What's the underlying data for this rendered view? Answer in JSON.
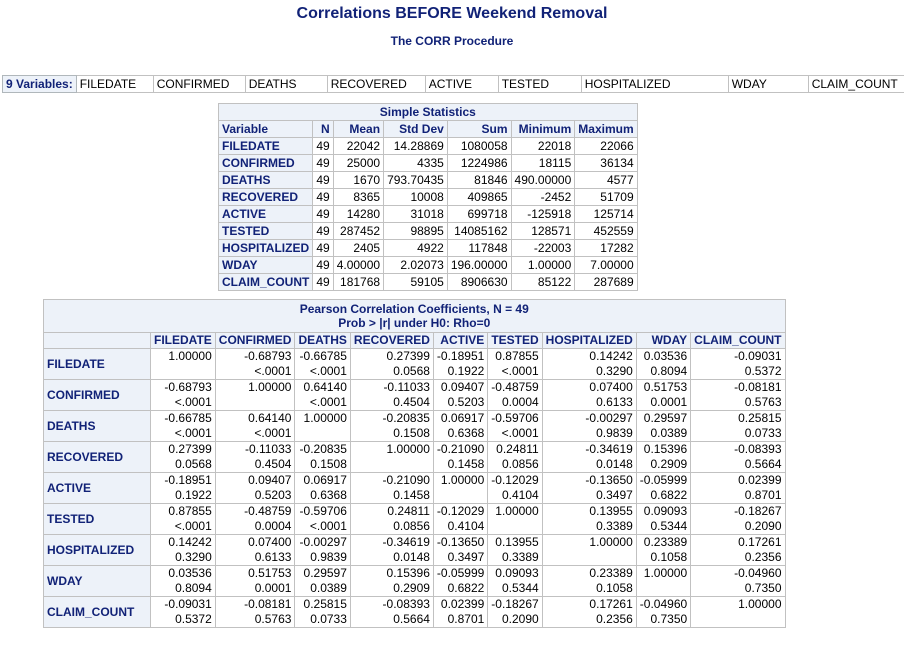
{
  "title": "Correlations BEFORE Weekend Removal",
  "subtitle": "The CORR Procedure",
  "variables": {
    "label": "9  Variables:",
    "names": [
      "FILEDATE",
      "CONFIRMED",
      "DEATHS",
      "RECOVERED",
      "ACTIVE",
      "TESTED",
      "HOSPITALIZED",
      "WDAY",
      "CLAIM_COUNT"
    ]
  },
  "simple_stats": {
    "caption": "Simple Statistics",
    "headers": [
      "Variable",
      "N",
      "Mean",
      "Std Dev",
      "Sum",
      "Minimum",
      "Maximum"
    ],
    "rows": [
      [
        "FILEDATE",
        "49",
        "22042",
        "14.28869",
        "1080058",
        "22018",
        "22066"
      ],
      [
        "CONFIRMED",
        "49",
        "25000",
        "4335",
        "1224986",
        "18115",
        "36134"
      ],
      [
        "DEATHS",
        "49",
        "1670",
        "793.70435",
        "81846",
        "490.00000",
        "4577"
      ],
      [
        "RECOVERED",
        "49",
        "8365",
        "10008",
        "409865",
        "-2452",
        "51709"
      ],
      [
        "ACTIVE",
        "49",
        "14280",
        "31018",
        "699718",
        "-125918",
        "125714"
      ],
      [
        "TESTED",
        "49",
        "287452",
        "98895",
        "14085162",
        "128571",
        "452559"
      ],
      [
        "HOSPITALIZED",
        "49",
        "2405",
        "4922",
        "117848",
        "-22003",
        "17282"
      ],
      [
        "WDAY",
        "49",
        "4.00000",
        "2.02073",
        "196.00000",
        "1.00000",
        "7.00000"
      ],
      [
        "CLAIM_COUNT",
        "49",
        "181768",
        "59105",
        "8906630",
        "85122",
        "287689"
      ]
    ]
  },
  "pearson": {
    "caption_line1": "Pearson Correlation Coefficients, N = 49",
    "caption_line2": "Prob > |r| under H0: Rho=0",
    "columns": [
      "FILEDATE",
      "CONFIRMED",
      "DEATHS",
      "RECOVERED",
      "ACTIVE",
      "TESTED",
      "HOSPITALIZED",
      "WDAY",
      "CLAIM_COUNT"
    ],
    "rows": [
      {
        "name": "FILEDATE",
        "r": [
          "1.00000",
          "-0.68793",
          "-0.66785",
          "0.27399",
          "-0.18951",
          "0.87855",
          "0.14242",
          "0.03536",
          "-0.09031"
        ],
        "p": [
          "",
          "<.0001",
          "<.0001",
          "0.0568",
          "0.1922",
          "<.0001",
          "0.3290",
          "0.8094",
          "0.5372"
        ]
      },
      {
        "name": "CONFIRMED",
        "r": [
          "-0.68793",
          "1.00000",
          "0.64140",
          "-0.11033",
          "0.09407",
          "-0.48759",
          "0.07400",
          "0.51753",
          "-0.08181"
        ],
        "p": [
          "<.0001",
          "",
          "<.0001",
          "0.4504",
          "0.5203",
          "0.0004",
          "0.6133",
          "0.0001",
          "0.5763"
        ]
      },
      {
        "name": "DEATHS",
        "r": [
          "-0.66785",
          "0.64140",
          "1.00000",
          "-0.20835",
          "0.06917",
          "-0.59706",
          "-0.00297",
          "0.29597",
          "0.25815"
        ],
        "p": [
          "<.0001",
          "<.0001",
          "",
          "0.1508",
          "0.6368",
          "<.0001",
          "0.9839",
          "0.0389",
          "0.0733"
        ]
      },
      {
        "name": "RECOVERED",
        "r": [
          "0.27399",
          "-0.11033",
          "-0.20835",
          "1.00000",
          "-0.21090",
          "0.24811",
          "-0.34619",
          "0.15396",
          "-0.08393"
        ],
        "p": [
          "0.0568",
          "0.4504",
          "0.1508",
          "",
          "0.1458",
          "0.0856",
          "0.0148",
          "0.2909",
          "0.5664"
        ]
      },
      {
        "name": "ACTIVE",
        "r": [
          "-0.18951",
          "0.09407",
          "0.06917",
          "-0.21090",
          "1.00000",
          "-0.12029",
          "-0.13650",
          "-0.05999",
          "0.02399"
        ],
        "p": [
          "0.1922",
          "0.5203",
          "0.6368",
          "0.1458",
          "",
          "0.4104",
          "0.3497",
          "0.6822",
          "0.8701"
        ]
      },
      {
        "name": "TESTED",
        "r": [
          "0.87855",
          "-0.48759",
          "-0.59706",
          "0.24811",
          "-0.12029",
          "1.00000",
          "0.13955",
          "0.09093",
          "-0.18267"
        ],
        "p": [
          "<.0001",
          "0.0004",
          "<.0001",
          "0.0856",
          "0.4104",
          "",
          "0.3389",
          "0.5344",
          "0.2090"
        ]
      },
      {
        "name": "HOSPITALIZED",
        "r": [
          "0.14242",
          "0.07400",
          "-0.00297",
          "-0.34619",
          "-0.13650",
          "0.13955",
          "1.00000",
          "0.23389",
          "0.17261"
        ],
        "p": [
          "0.3290",
          "0.6133",
          "0.9839",
          "0.0148",
          "0.3497",
          "0.3389",
          "",
          "0.1058",
          "0.2356"
        ]
      },
      {
        "name": "WDAY",
        "r": [
          "0.03536",
          "0.51753",
          "0.29597",
          "0.15396",
          "-0.05999",
          "0.09093",
          "0.23389",
          "1.00000",
          "-0.04960"
        ],
        "p": [
          "0.8094",
          "0.0001",
          "0.0389",
          "0.2909",
          "0.6822",
          "0.5344",
          "0.1058",
          "",
          "0.7350"
        ]
      },
      {
        "name": "CLAIM_COUNT",
        "r": [
          "-0.09031",
          "-0.08181",
          "0.25815",
          "-0.08393",
          "0.02399",
          "-0.18267",
          "0.17261",
          "-0.04960",
          "1.00000"
        ],
        "p": [
          "0.5372",
          "0.5763",
          "0.0733",
          "0.5664",
          "0.8701",
          "0.2090",
          "0.2356",
          "0.7350",
          ""
        ]
      }
    ]
  }
}
